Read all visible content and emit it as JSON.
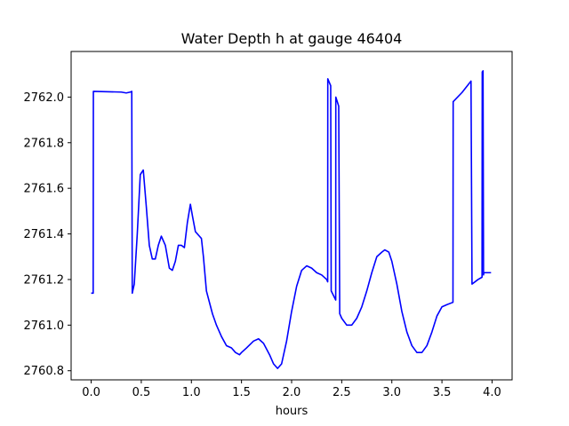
{
  "chart_data": {
    "type": "line",
    "title": "Water Depth h at gauge 46404",
    "xlabel": "hours",
    "ylabel": "",
    "xlim": [
      -0.2,
      4.2
    ],
    "ylim": [
      2760.76,
      2762.2
    ],
    "grid": false,
    "xticks": [
      0.0,
      0.5,
      1.0,
      1.5,
      2.0,
      2.5,
      3.0,
      3.5,
      4.0
    ],
    "xtick_labels": [
      "0.0",
      "0.5",
      "1.0",
      "1.5",
      "2.0",
      "2.5",
      "3.0",
      "3.5",
      "4.0"
    ],
    "yticks": [
      2760.8,
      2761.0,
      2761.2,
      2761.4,
      2761.6,
      2761.8,
      2762.0
    ],
    "ytick_labels": [
      "2760.8",
      "2761.0",
      "2761.2",
      "2761.4",
      "2761.6",
      "2761.8",
      "2762.0"
    ],
    "series": [
      {
        "color": "#0000ff",
        "x": [
          0.0,
          0.02,
          0.022,
          0.3,
          0.35,
          0.39,
          0.405,
          0.41,
          0.43,
          0.46,
          0.49,
          0.52,
          0.55,
          0.58,
          0.61,
          0.64,
          0.67,
          0.7,
          0.74,
          0.78,
          0.81,
          0.84,
          0.87,
          0.9,
          0.93,
          0.96,
          0.99,
          1.01,
          1.04,
          1.06,
          1.08,
          1.1,
          1.12,
          1.15,
          1.18,
          1.21,
          1.25,
          1.3,
          1.35,
          1.4,
          1.44,
          1.48,
          1.5,
          1.55,
          1.62,
          1.67,
          1.72,
          1.78,
          1.82,
          1.86,
          1.9,
          1.95,
          2.0,
          2.05,
          2.1,
          2.15,
          2.2,
          2.25,
          2.3,
          2.35,
          2.36,
          2.361,
          2.39,
          2.395,
          2.44,
          2.441,
          2.47,
          2.48,
          2.5,
          2.55,
          2.6,
          2.65,
          2.7,
          2.75,
          2.8,
          2.85,
          2.9,
          2.93,
          2.97,
          3.0,
          3.05,
          3.1,
          3.15,
          3.2,
          3.25,
          3.3,
          3.35,
          3.4,
          3.45,
          3.5,
          3.55,
          3.61,
          3.612,
          3.7,
          3.79,
          3.8,
          3.86,
          3.9,
          3.902,
          3.91,
          3.915,
          3.918,
          3.95,
          3.99
        ],
        "values": [
          2761.14,
          2761.14,
          2762.025,
          2762.022,
          2762.018,
          2762.022,
          2762.025,
          2761.14,
          2761.18,
          2761.4,
          2761.66,
          2761.68,
          2761.52,
          2761.35,
          2761.29,
          2761.29,
          2761.35,
          2761.39,
          2761.35,
          2761.25,
          2761.24,
          2761.28,
          2761.35,
          2761.35,
          2761.34,
          2761.45,
          2761.53,
          2761.48,
          2761.41,
          2761.4,
          2761.39,
          2761.38,
          2761.3,
          2761.15,
          2761.1,
          2761.05,
          2761.0,
          2760.95,
          2760.91,
          2760.9,
          2760.88,
          2760.87,
          2760.88,
          2760.9,
          2760.93,
          2760.94,
          2760.92,
          2760.87,
          2760.83,
          2760.81,
          2760.83,
          2760.93,
          2761.06,
          2761.17,
          2761.24,
          2761.26,
          2761.25,
          2761.23,
          2761.22,
          2761.2,
          2761.19,
          2762.08,
          2762.05,
          2761.15,
          2761.11,
          2762.0,
          2761.96,
          2761.05,
          2761.03,
          2761.0,
          2761.0,
          2761.03,
          2761.08,
          2761.15,
          2761.23,
          2761.3,
          2761.32,
          2761.33,
          2761.32,
          2761.28,
          2761.18,
          2761.06,
          2760.97,
          2760.91,
          2760.88,
          2760.88,
          2760.91,
          2760.97,
          2761.04,
          2761.08,
          2761.09,
          2761.1,
          2761.98,
          2762.02,
          2762.07,
          2761.18,
          2761.2,
          2761.21,
          2762.11,
          2762.115,
          2761.22,
          2761.23,
          2761.23,
          2761.23
        ]
      }
    ]
  }
}
